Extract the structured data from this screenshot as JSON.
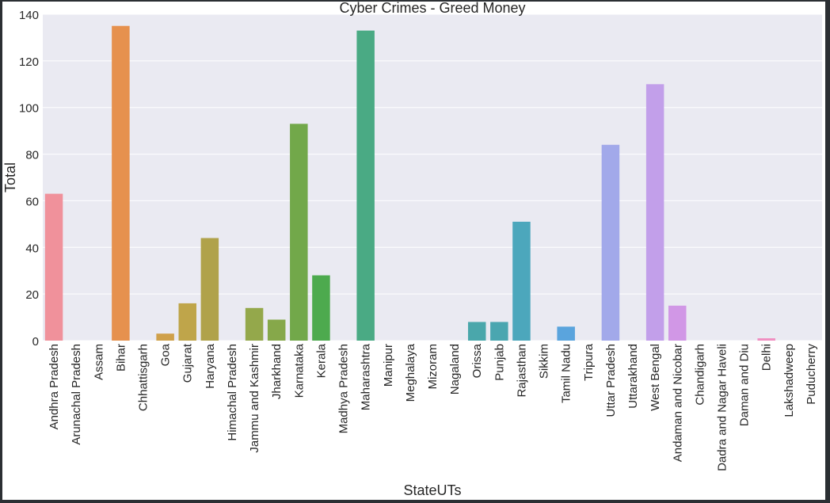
{
  "chart_data": {
    "type": "bar",
    "title": "Cyber Crimes - Greed Money",
    "xlabel": "StateUTs",
    "ylabel": "Total",
    "ylim": [
      0,
      140
    ],
    "yticks": [
      0,
      20,
      40,
      60,
      80,
      100,
      120,
      140
    ],
    "grid": true,
    "categories": [
      "Andhra Pradesh",
      "Arunachal Pradesh",
      "Assam",
      "Bihar",
      "Chhattisgarh",
      "Goa",
      "Gujarat",
      "Haryana",
      "Himachal Pradesh",
      "Jammu and Kashmir",
      "Jharkhand",
      "Karnataka",
      "Kerala",
      "Madhya Pradesh",
      "Maharashtra",
      "Manipur",
      "Meghalaya",
      "Mizoram",
      "Nagaland",
      "Orissa",
      "Punjab",
      "Rajasthan",
      "Sikkim",
      "Tamil Nadu",
      "Tripura",
      "Uttar Pradesh",
      "Uttarakhand",
      "West Bengal",
      "Andaman and Nicobar",
      "Chandigarh",
      "Dadra and Nagar Haveli",
      "Daman and Diu",
      "Delhi",
      "Lakshadweep",
      "Puducherry"
    ],
    "values": [
      63,
      0,
      0,
      135,
      0,
      3,
      16,
      44,
      0,
      14,
      9,
      93,
      28,
      0,
      133,
      0,
      0,
      0,
      0,
      8,
      8,
      51,
      0,
      6,
      0,
      84,
      0,
      110,
      15,
      0,
      0,
      0,
      1,
      0,
      0
    ],
    "colors": [
      "#f0919b",
      "#f0919b",
      "#ec9a6e",
      "#e6914e",
      "#d99a4a",
      "#cfa04a",
      "#bfa54a",
      "#b0a24a",
      "#a7a848",
      "#94a84b",
      "#86a84a",
      "#72a84a",
      "#4daa4e",
      "#4dab6e",
      "#4aaa84",
      "#4aa994",
      "#4aa89a",
      "#4aa7a0",
      "#4aa6a6",
      "#4aa7ab",
      "#4aa6b0",
      "#4ca7bc",
      "#4ea6c8",
      "#5aa4dd",
      "#7aa4e6",
      "#a2a9ea",
      "#b3a5ea",
      "#c29fea",
      "#d197e6",
      "#dc90dc",
      "#e58dcf",
      "#eb8cc1",
      "#f08fc1",
      "#f091b4",
      "#f091a8"
    ],
    "plot_background": "#eaeaf2",
    "grid_color": "#ffffff"
  }
}
